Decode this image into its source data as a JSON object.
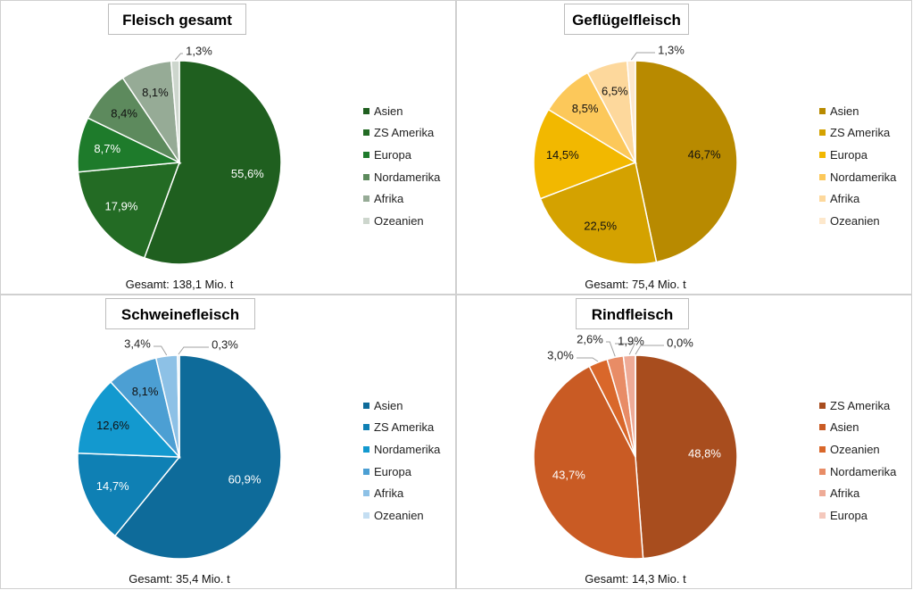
{
  "chart_data": [
    {
      "type": "pie",
      "title": "Fleisch gesamt",
      "total_label": "Gesamt: 138,1 Mio. t",
      "categories": [
        "Asien",
        "ZS Amerika",
        "Europa",
        "Nordamerika",
        "Afrika",
        "Ozeanien"
      ],
      "values": [
        55.6,
        17.9,
        8.7,
        8.4,
        8.1,
        1.3
      ],
      "labels": [
        "55,6%",
        "17,9%",
        "8,7%",
        "8,4%",
        "8,1%",
        "1,3%"
      ],
      "colors": [
        "#1f5f1f",
        "#236b24",
        "#1e7b2b",
        "#5d8a5d",
        "#96ab96",
        "#cdd6cd"
      ],
      "label_colors": [
        "#ffffff",
        "#ffffff",
        "#ffffff",
        "#111111",
        "#111111",
        "#111111"
      ],
      "legend": "right"
    },
    {
      "type": "pie",
      "title": "Geflügelfleisch",
      "total_label": "Gesamt: 75,4 Mio. t",
      "categories": [
        "Asien",
        "ZS Amerika",
        "Europa",
        "Nordamerika",
        "Afrika",
        "Ozeanien"
      ],
      "values": [
        46.7,
        22.5,
        14.5,
        8.5,
        6.5,
        1.3
      ],
      "labels": [
        "46,7%",
        "22,5%",
        "14,5%",
        "8,5%",
        "6,5%",
        "1,3%"
      ],
      "colors": [
        "#b88a00",
        "#d4a200",
        "#f2b800",
        "#fcc85a",
        "#fdd89c",
        "#fde8cc"
      ],
      "label_colors": [
        "#111111",
        "#111111",
        "#111111",
        "#111111",
        "#111111",
        "#111111"
      ],
      "legend": "right"
    },
    {
      "type": "pie",
      "title": "Schweinefleisch",
      "total_label": "Gesamt: 35,4 Mio. t",
      "categories": [
        "Asien",
        "ZS Amerika",
        "Nordamerika",
        "Europa",
        "Afrika",
        "Ozeanien"
      ],
      "values": [
        60.9,
        14.7,
        12.6,
        8.1,
        3.4,
        0.3
      ],
      "labels": [
        "60,9%",
        "14,7%",
        "12,6%",
        "8,1%",
        "3,4%",
        "0,3%"
      ],
      "colors": [
        "#0e6b9a",
        "#0f80b4",
        "#1399cf",
        "#4c9fd3",
        "#8dc1e6",
        "#c4def2"
      ],
      "label_colors": [
        "#ffffff",
        "#ffffff",
        "#111111",
        "#111111",
        "#111111",
        "#111111"
      ],
      "legend": "right"
    },
    {
      "type": "pie",
      "title": "Rindfleisch",
      "total_label": "Gesamt: 14,3 Mio. t",
      "categories": [
        "ZS Amerika",
        "Asien",
        "Ozeanien",
        "Nordamerika",
        "Afrika",
        "Europa"
      ],
      "values": [
        48.8,
        43.7,
        3.0,
        2.6,
        1.9,
        0.0
      ],
      "labels": [
        "48,8%",
        "43,7%",
        "3,0%",
        "2,6%",
        "1,9%",
        "0,0%"
      ],
      "colors": [
        "#a84d1e",
        "#c95b24",
        "#d9672a",
        "#e88c66",
        "#eeab97",
        "#f4c8bc"
      ],
      "label_colors": [
        "#ffffff",
        "#ffffff",
        "#111111",
        "#111111",
        "#111111",
        "#111111"
      ],
      "legend": "right"
    }
  ]
}
